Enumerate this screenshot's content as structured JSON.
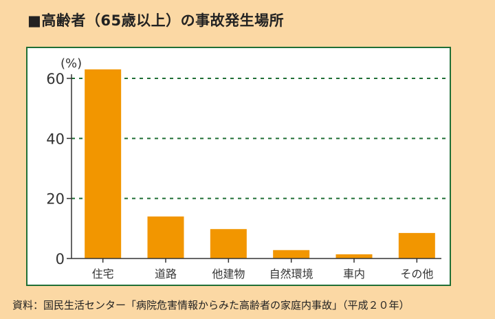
{
  "title": "■高齢者（65歳以上）の事故発生場所",
  "source": "資料：国民生活センター「病院危害情報からみた高齢者の家庭内事故」（平成２０年）",
  "colors": {
    "bar": "#f29600",
    "grid": "#1f6e35",
    "axis": "#333333",
    "background": "#fbd8a4",
    "frame": "#1f6e35"
  },
  "chart_data": {
    "type": "bar",
    "title": "■高齢者（65歳以上）の事故発生場所",
    "ylabel": "(%)",
    "xlabel": "",
    "categories": [
      "住宅",
      "道路",
      "他建物",
      "自然環境",
      "車内",
      "その他"
    ],
    "values": [
      63,
      14,
      9.8,
      2.8,
      1.4,
      8.5
    ],
    "ylim": [
      0,
      60
    ],
    "yticks": [
      0,
      20,
      40,
      60
    ],
    "grid": true
  }
}
